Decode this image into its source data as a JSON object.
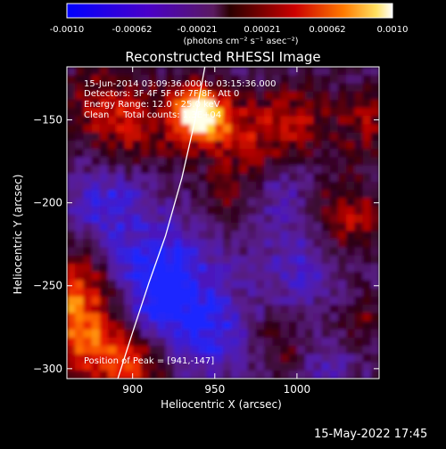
{
  "colorbar": {
    "ticks": [
      "-0.0010",
      "-0.00062",
      "-0.00021",
      "0.00021",
      "0.00062",
      "0.0010"
    ],
    "unit_label": "(photons cm⁻² s⁻¹ asec⁻²)",
    "range": [
      -0.001,
      0.001
    ]
  },
  "chart_data": {
    "type": "heatmap",
    "title": "Reconstructed RHESSI Image",
    "xlabel": "Heliocentric X (arcsec)",
    "ylabel": "Heliocentric Y (arcsec)",
    "xlim": [
      860,
      1050
    ],
    "ylim": [
      -306,
      -118
    ],
    "x_ticks": [
      900,
      950,
      1000
    ],
    "y_ticks": [
      -150,
      -200,
      -250,
      -300
    ],
    "annotations": [
      "15-Jun-2014 03:09:36.000 to 03:15:36.000",
      "Detectors: 3F 4F 5F 6F 7F 8F, Att 0",
      "Energy Range: 12.0 - 25.0 keV",
      "Clean     Total counts: 1.3E+04",
      "Position of Peak = [941,-147]"
    ],
    "peak": [
      941,
      -147
    ],
    "limb_curve": [
      [
        891,
        -306
      ],
      [
        900,
        -278
      ],
      [
        910,
        -248
      ],
      [
        920,
        -220
      ],
      [
        930,
        -185
      ],
      [
        938,
        -150
      ],
      [
        944,
        -118
      ]
    ]
  },
  "footer_date": "15-May-2022 17:45"
}
